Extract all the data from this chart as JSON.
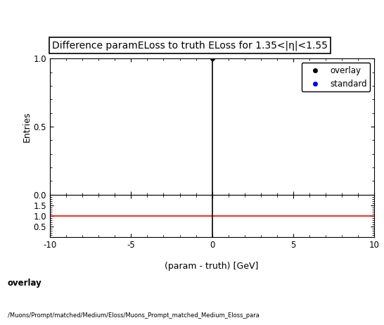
{
  "title": "Difference paramELoss to truth ELoss for 1.35<|η|<1.55",
  "xlabel": "(param - truth) [GeV]",
  "ylabel_main": "Entries",
  "xlim": [
    -10,
    10
  ],
  "ylim_main": [
    0,
    1.0
  ],
  "ylim_ratio": [
    0,
    2.0
  ],
  "ratio_yticks": [
    0.5,
    1.0,
    1.5
  ],
  "main_yticks": [
    0,
    0.5,
    1.0
  ],
  "overlay_data_x": [
    0
  ],
  "overlay_data_y": [
    1
  ],
  "overlay_color": "#000000",
  "standard_color": "#0000ff",
  "ratio_line_color": "#ff0000",
  "ratio_line_y": 1.0,
  "vertical_line_x": 0,
  "background_color": "#ffffff",
  "title_fontsize": 10,
  "axis_fontsize": 9,
  "tick_fontsize": 8.5,
  "legend_entries": [
    "overlay",
    "standard"
  ],
  "footer_text1": "overlay",
  "footer_text2": "/Muons/Prompt/matched/Medium/Eloss/Muons_Prompt_matched_Medium_Eloss_para"
}
